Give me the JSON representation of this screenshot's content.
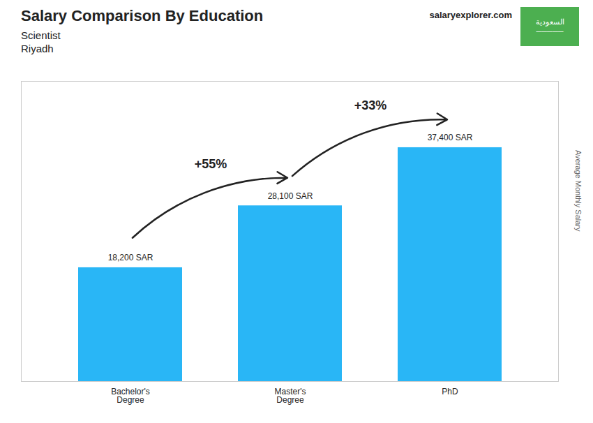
{
  "chart_data": {
    "type": "bar",
    "title": "Salary Comparison By Education",
    "subtitle": [
      "Scientist",
      "Riyadh"
    ],
    "ylabel": "Average Monthly Salary",
    "categories": [
      "Bachelor's\nDegree",
      "Master's\nDegree",
      "PhD"
    ],
    "values": [
      18200,
      28100,
      37400
    ],
    "value_labels": [
      "18,200 SAR",
      "28,100 SAR",
      "37,400 SAR"
    ],
    "data_labels": true,
    "color": "#29b6f6",
    "ylim": [
      0,
      48000
    ],
    "yticks": [],
    "tick_labels": "x",
    "grid": false,
    "annotations": [
      "+55%",
      "+33%",
      "salaryexplorer.com",
      "السعودية",
      "─────"
    ]
  }
}
